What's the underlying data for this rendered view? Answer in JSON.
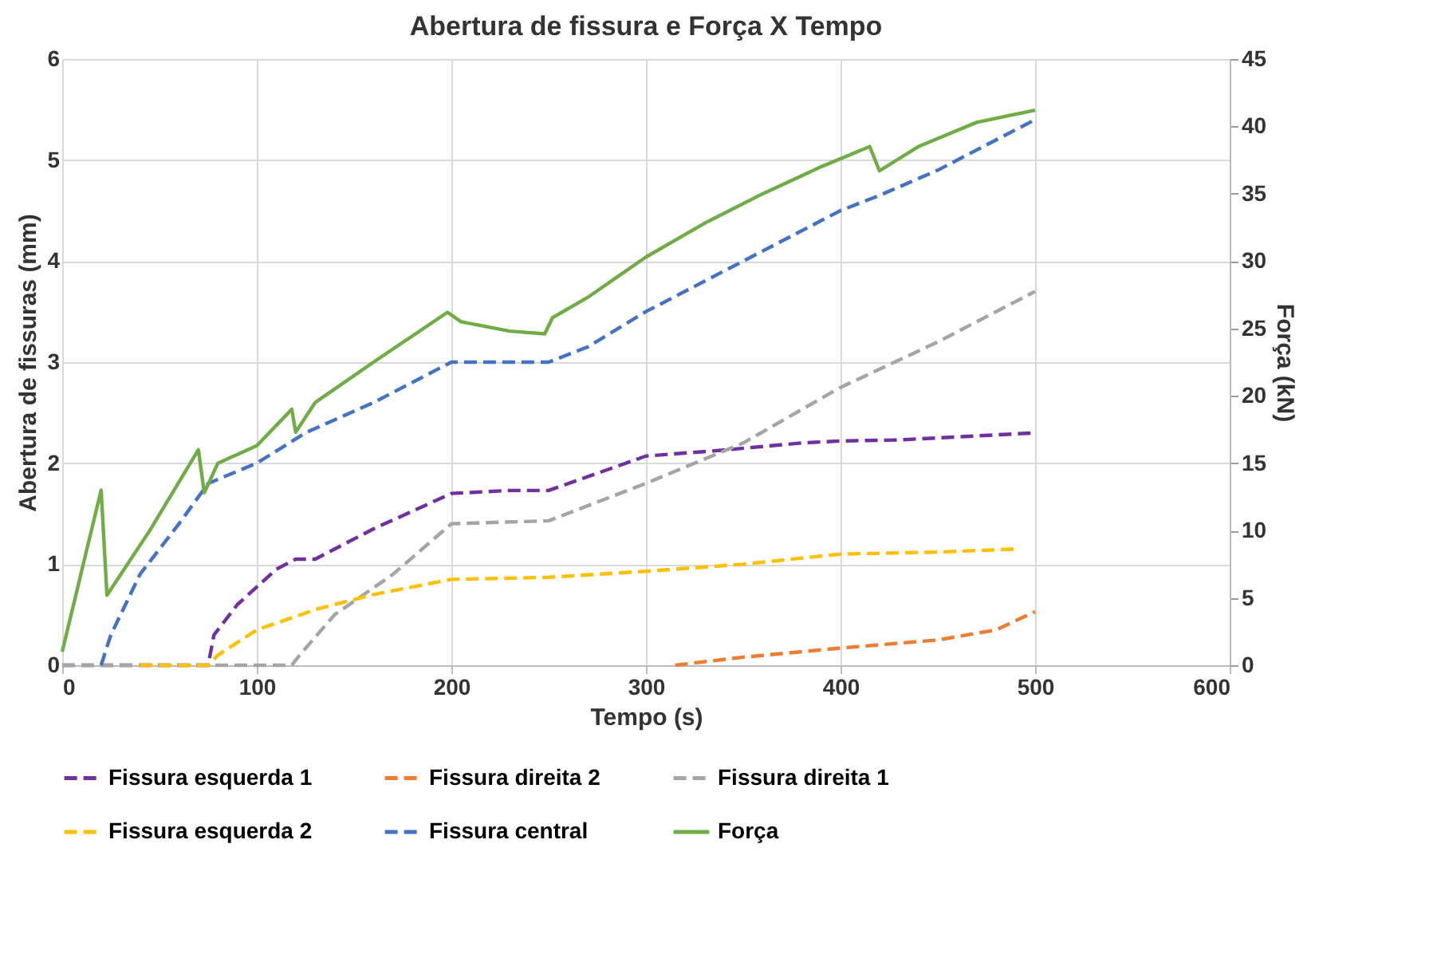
{
  "chart_data": {
    "type": "line",
    "title": "Abertura de fissura e Força X Tempo",
    "xlabel": "Tempo (s)",
    "ylabel": "Abertura de fissuras (mm)",
    "y2label": "Força (kN)",
    "xlim": [
      0,
      600
    ],
    "xticks": [
      0,
      100,
      200,
      300,
      400,
      500,
      600
    ],
    "ylim": [
      0,
      6
    ],
    "yticks": [
      0,
      1,
      2,
      3,
      4,
      5,
      6
    ],
    "y2lim": [
      0,
      45
    ],
    "y2ticks": [
      0,
      5,
      10,
      15,
      20,
      25,
      30,
      35,
      40,
      45
    ],
    "grid": true,
    "legend": "bottom",
    "marker": "none",
    "series": [
      {
        "name": "Fissura esquerda 1",
        "color": "#7030a0",
        "line_style": "dashed",
        "x": [
          0,
          75,
          78,
          90,
          110,
          120,
          130,
          160,
          200,
          230,
          250,
          300,
          340,
          380,
          400,
          430,
          500
        ],
        "values": [
          0,
          0,
          0.3,
          0.6,
          0.95,
          1.05,
          1.05,
          1.35,
          1.7,
          1.73,
          1.73,
          2.07,
          2.13,
          2.2,
          2.22,
          2.23,
          2.3
        ]
      },
      {
        "name": "Fissura direita 2",
        "color": "#ed7d31",
        "line_style": "dashed",
        "x": [
          315,
          350,
          400,
          450,
          480,
          500
        ],
        "values": [
          0,
          0.08,
          0.17,
          0.25,
          0.35,
          0.53
        ]
      },
      {
        "name": "Fissura direita 1",
        "color": "#a5a5a5",
        "line_style": "dashed",
        "x": [
          0,
          118,
          122,
          140,
          170,
          200,
          250,
          300,
          350,
          400,
          450,
          500
        ],
        "values": [
          0,
          0,
          0.1,
          0.5,
          0.9,
          1.4,
          1.43,
          1.8,
          2.2,
          2.75,
          3.2,
          3.7
        ]
      },
      {
        "name": "Fissura esquerda 2",
        "color": "#ffc000",
        "line_style": "dashed",
        "x": [
          40,
          75,
          80,
          100,
          130,
          160,
          200,
          250,
          300,
          350,
          400,
          450,
          490
        ],
        "values": [
          0,
          0,
          0.1,
          0.35,
          0.55,
          0.7,
          0.85,
          0.87,
          0.93,
          1.0,
          1.1,
          1.12,
          1.15
        ]
      },
      {
        "name": "Fissura central",
        "color": "#4472c4",
        "line_style": "dashed",
        "x": [
          20,
          25,
          40,
          60,
          75,
          100,
          125,
          160,
          200,
          250,
          270,
          300,
          350,
          400,
          420,
          450,
          500
        ],
        "values": [
          0,
          0.3,
          0.9,
          1.4,
          1.8,
          2.0,
          2.3,
          2.6,
          3.0,
          3.0,
          3.15,
          3.5,
          4.0,
          4.5,
          4.65,
          4.9,
          5.4
        ]
      },
      {
        "name": "Força",
        "color": "#70ad47",
        "line_style": "solid",
        "axis": "y2",
        "x": [
          0,
          20,
          23,
          45,
          70,
          73,
          80,
          100,
          118,
          120,
          130,
          160,
          198,
          205,
          230,
          248,
          252,
          270,
          300,
          330,
          360,
          390,
          415,
          420,
          440,
          470,
          500
        ],
        "values": [
          1,
          13,
          5.2,
          10,
          16,
          12.8,
          15,
          16.3,
          19,
          17.3,
          19.5,
          22.5,
          26.2,
          25.5,
          24.8,
          24.6,
          25.8,
          27.3,
          30.3,
          32.8,
          35,
          37,
          38.5,
          36.7,
          38.5,
          40.3,
          41.2
        ]
      }
    ]
  }
}
